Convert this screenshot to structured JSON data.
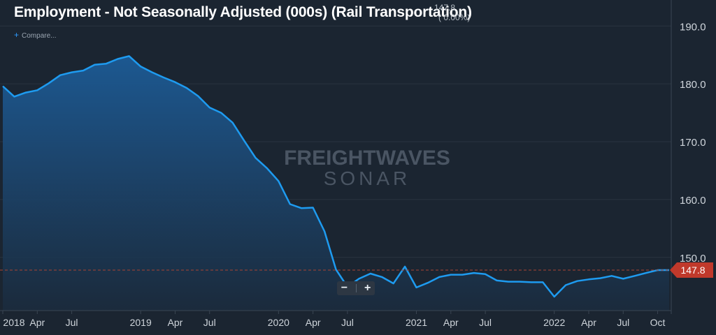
{
  "header": {
    "title": "Employment - Not Seasonally Adjusted (000s) (Rail Transportation)",
    "current_value": "147.8",
    "change": "( 0.00%)",
    "compare_label": "Compare..."
  },
  "watermark": {
    "line1": "FREIGHTWAVES",
    "line2": "SONAR"
  },
  "zoom": {
    "minus": "−",
    "plus": "+"
  },
  "colors": {
    "line": "#1e9bf0",
    "tag": "#c0392b",
    "background": "#1b2531"
  },
  "chart_data": {
    "type": "area",
    "x_ticks": [
      "2018",
      "Apr",
      "Jul",
      "2019",
      "Apr",
      "Jul",
      "2020",
      "Apr",
      "Jul",
      "2021",
      "Apr",
      "Jul",
      "2022",
      "Apr",
      "Jul",
      "Oct"
    ],
    "y_ticks": [
      "190.0",
      "180.0",
      "170.0",
      "160.0",
      "150.0"
    ],
    "ylim": [
      140.8,
      194.5
    ],
    "last_value_label": "147.8",
    "series": [
      {
        "x": [
          "2018-01",
          "2018-02",
          "2018-03",
          "2018-04",
          "2018-05",
          "2018-06",
          "2018-07",
          "2018-08",
          "2018-09",
          "2018-10",
          "2018-11",
          "2018-12",
          "2019-01",
          "2019-02",
          "2019-03",
          "2019-04",
          "2019-05",
          "2019-06",
          "2019-07",
          "2019-08",
          "2019-09",
          "2019-10",
          "2019-11",
          "2019-12",
          "2020-01",
          "2020-02",
          "2020-03",
          "2020-04",
          "2020-05",
          "2020-06",
          "2020-07",
          "2020-08",
          "2020-09",
          "2020-10",
          "2020-11",
          "2020-12",
          "2021-01",
          "2021-02",
          "2021-03",
          "2021-04",
          "2021-05",
          "2021-06",
          "2021-07",
          "2021-08",
          "2021-09",
          "2021-10",
          "2021-11",
          "2021-12",
          "2022-01",
          "2022-02",
          "2022-03",
          "2022-04",
          "2022-05",
          "2022-06",
          "2022-07",
          "2022-08",
          "2022-09",
          "2022-10",
          "2022-11"
        ],
        "values": [
          179.6,
          177.8,
          178.5,
          178.9,
          180.1,
          181.5,
          182.0,
          182.3,
          183.3,
          183.5,
          184.3,
          184.8,
          183.0,
          182.0,
          181.1,
          180.3,
          179.3,
          177.9,
          175.9,
          175.0,
          173.3,
          170.2,
          167.2,
          165.4,
          163.2,
          159.2,
          158.5,
          158.6,
          154.5,
          147.9,
          144.9,
          146.3,
          147.2,
          146.6,
          145.5,
          148.4,
          144.8,
          145.6,
          146.6,
          147.0,
          147.0,
          147.3,
          147.1,
          146.0,
          145.8,
          145.8,
          145.7,
          145.7,
          143.2,
          145.2,
          145.9,
          146.2,
          146.4,
          146.8,
          146.3,
          146.8,
          147.3,
          147.8,
          147.8
        ]
      }
    ]
  }
}
